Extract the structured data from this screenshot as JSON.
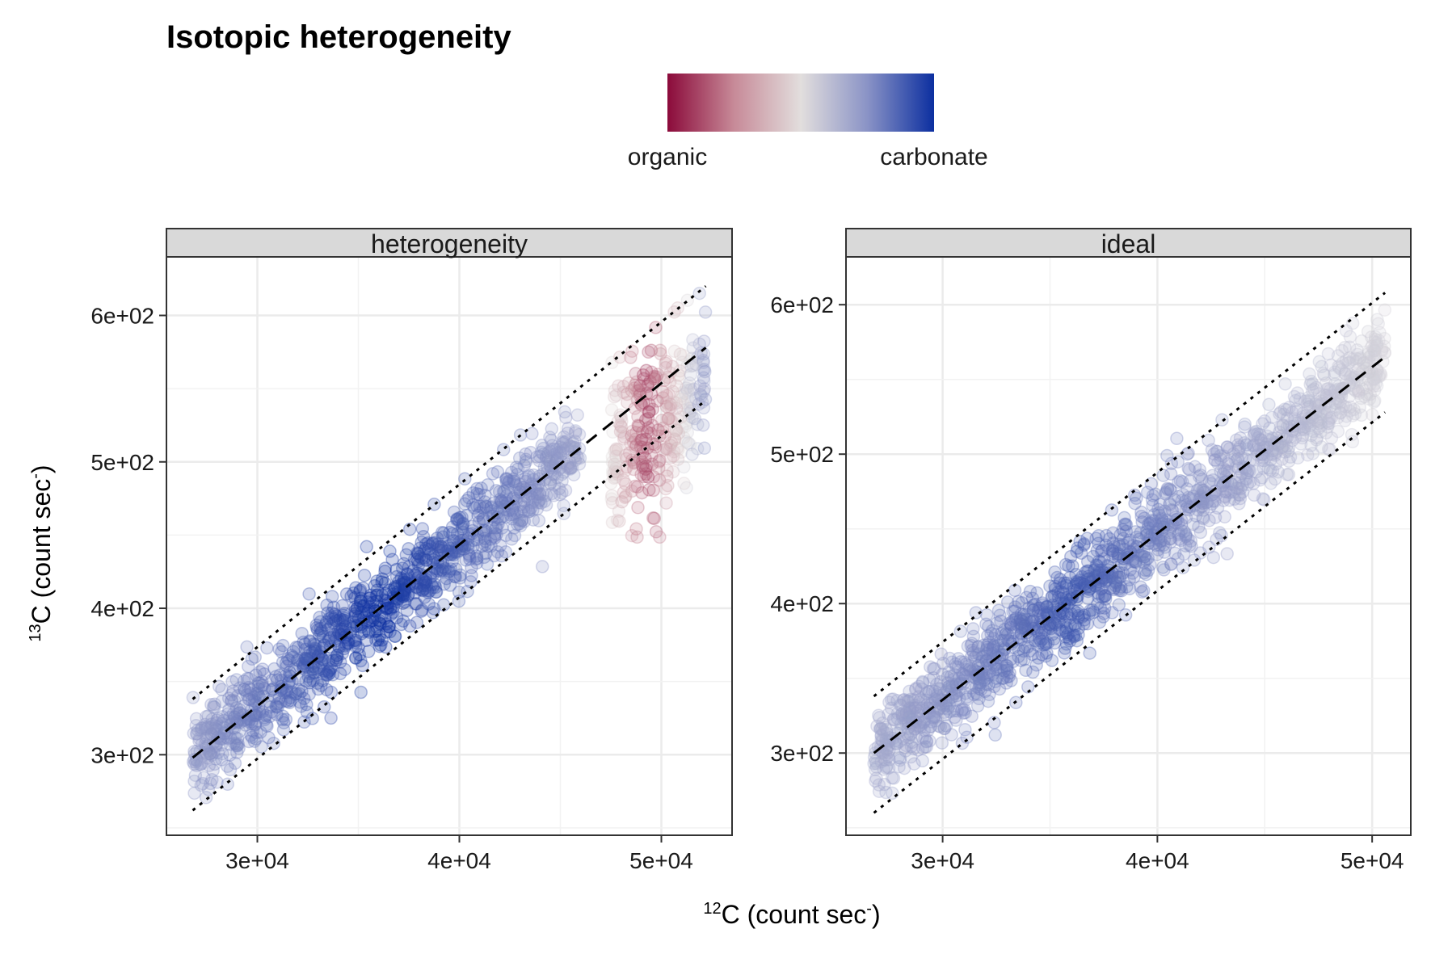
{
  "title": "Isotopic heterogeneity",
  "legend": {
    "low_label": "organic",
    "high_label": "carbonate",
    "colors": [
      "#8b0a3a",
      "#c78a98",
      "#e2dedd",
      "#8a93c6",
      "#0c2fa0"
    ]
  },
  "axes": {
    "xlabel_sup": "12",
    "xlabel_main": "C (count sec",
    "xlabel_sup2": "-",
    "xlabel_end": ")",
    "ylabel_sup": "13",
    "ylabel_main": "C (count sec",
    "ylabel_sup2": "-",
    "ylabel_end": ")"
  },
  "chart_data": [
    {
      "type": "scatter",
      "panel": "heterogeneity",
      "xlim": [
        25500,
        53500
      ],
      "ylim": [
        245,
        640
      ],
      "x_ticks": [
        30000,
        40000,
        50000
      ],
      "x_tick_labels": [
        "3e+04",
        "4e+04",
        "5e+04"
      ],
      "y_ticks": [
        300,
        400,
        500,
        600
      ],
      "y_tick_labels": [
        "3e+02",
        "4e+02",
        "5e+02",
        "6e+02"
      ],
      "grid": true,
      "x_range": [
        26800,
        52200
      ],
      "organic_x_range": [
        47500,
        52200
      ],
      "trend_line": {
        "x": [
          26800,
          52200
        ],
        "y": [
          298,
          578
        ]
      },
      "upper_bound": {
        "x": [
          26800,
          52200
        ],
        "y": [
          338,
          620
        ]
      },
      "lower_bound": {
        "x": [
          26800,
          52200
        ],
        "y": [
          262,
          542
        ]
      }
    },
    {
      "type": "scatter",
      "panel": "ideal",
      "xlim": [
        25500,
        51800
      ],
      "ylim": [
        245,
        632
      ],
      "x_ticks": [
        30000,
        40000,
        50000
      ],
      "x_tick_labels": [
        "3e+04",
        "4e+04",
        "5e+04"
      ],
      "y_ticks": [
        300,
        400,
        500,
        600
      ],
      "y_tick_labels": [
        "3e+02",
        "4e+02",
        "5e+02",
        "6e+02"
      ],
      "grid": true,
      "x_range": [
        26800,
        50600
      ],
      "trend_line": {
        "x": [
          26800,
          50600
        ],
        "y": [
          300,
          565
        ]
      },
      "upper_bound": {
        "x": [
          26800,
          50600
        ],
        "y": [
          338,
          608
        ]
      },
      "lower_bound": {
        "x": [
          26800,
          50600
        ],
        "y": [
          260,
          528
        ]
      }
    }
  ]
}
